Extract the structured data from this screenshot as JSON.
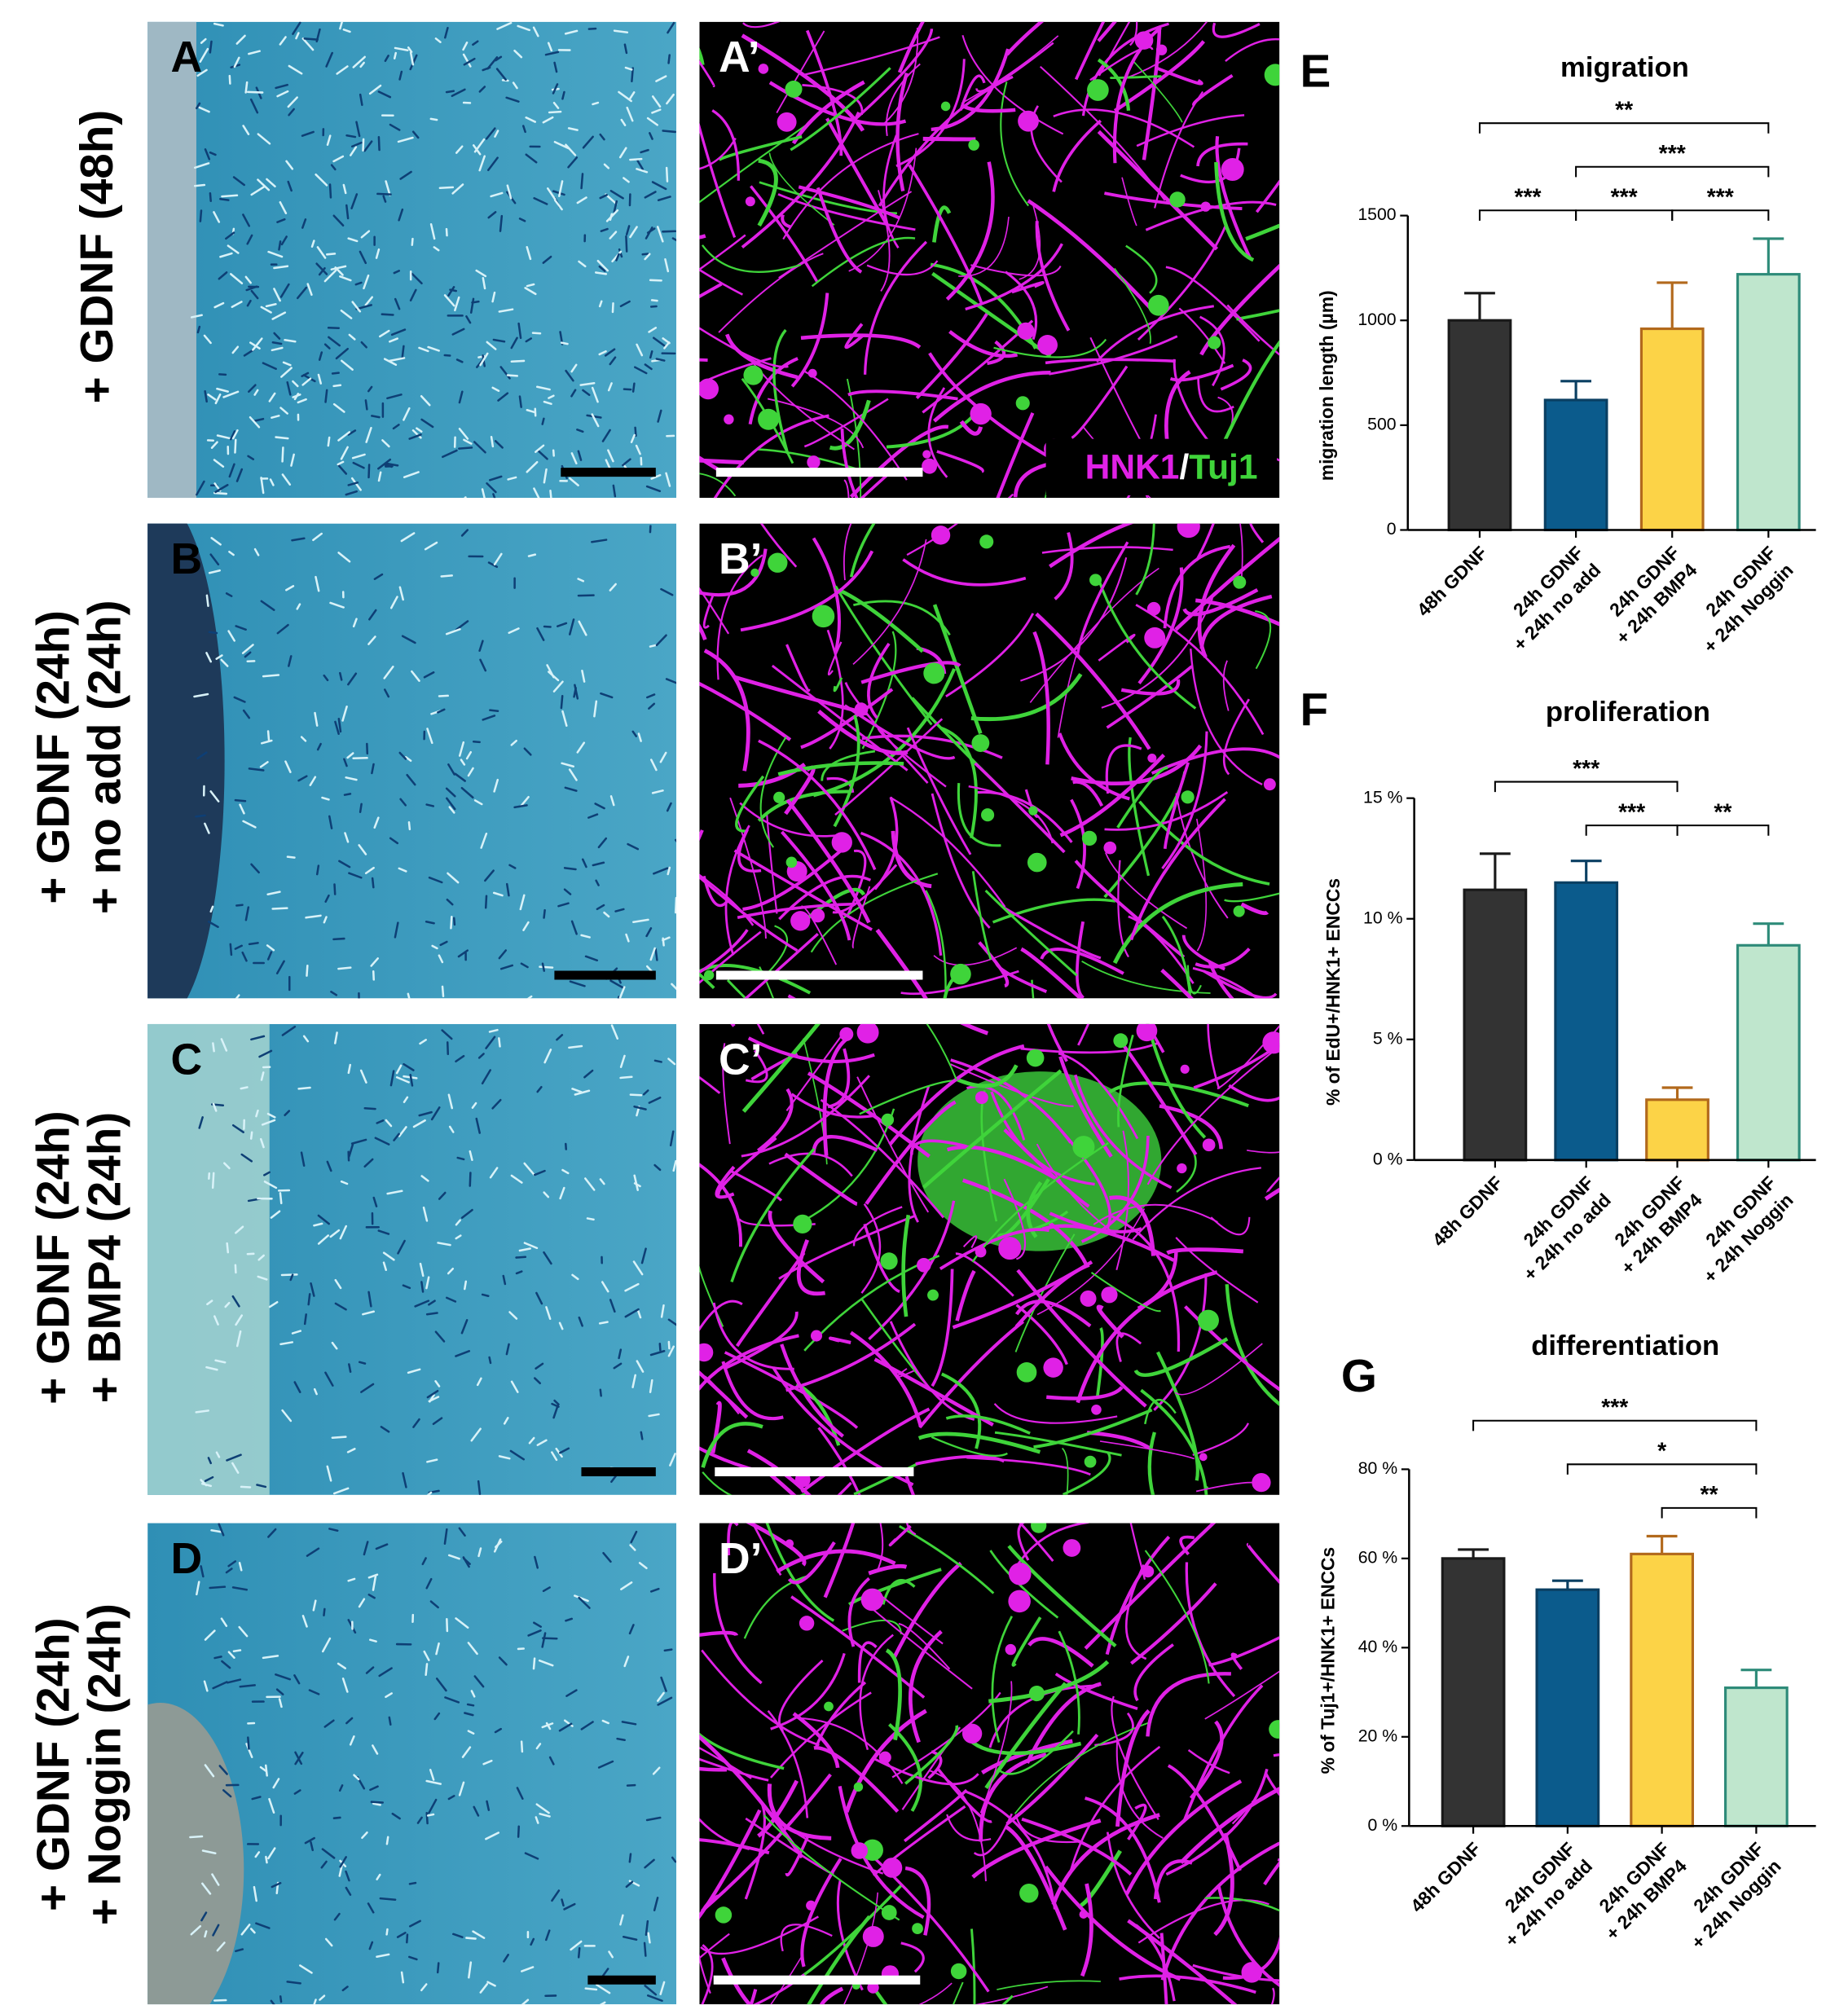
{
  "panels": {
    "left": [
      "A",
      "B",
      "C",
      "D"
    ],
    "right": [
      "A’",
      "B’",
      "C’",
      "D’"
    ]
  },
  "row_labels": [
    [
      "+ GDNF (48h)"
    ],
    [
      "+ GDNF (24h)",
      "+ no add (24h)"
    ],
    [
      "+ GDNF (24h)",
      "+ BMP4 (24h)"
    ],
    [
      "+ GDNF (24h)",
      "+ Noggin (24h)"
    ]
  ],
  "stain_label": {
    "hnk1": "HNK1",
    "separator": "/",
    "tuj1": "Tuj1"
  },
  "chart_data": [
    {
      "type": "bar",
      "panel": "E",
      "title": "migration",
      "y_label": "migration length (µm)",
      "categories": [
        [
          "48h GDNF"
        ],
        [
          "24h GDNF",
          "+ 24h no add"
        ],
        [
          "24h GDNF",
          "+ 24h BMP4"
        ],
        [
          "24h GDNF",
          "+ 24h Noggin"
        ]
      ],
      "values": [
        1000,
        620,
        960,
        1220
      ],
      "errors": [
        130,
        90,
        220,
        170
      ],
      "colors": [
        "#333333",
        "#0b5b8c",
        "#fcd347",
        "#bfe6cd"
      ],
      "edge_colors": [
        "#1a1a1a",
        "#0a3f62",
        "#b2691c",
        "#2e8b79"
      ],
      "ylim": [
        0,
        1500
      ],
      "yticks": [
        0,
        500,
        1000,
        1500
      ],
      "comparisons": [
        {
          "groups": [
            0,
            3
          ],
          "label": "**"
        },
        {
          "groups": [
            1,
            3
          ],
          "label": "***"
        },
        {
          "groups": [
            0,
            1
          ],
          "label": "***"
        },
        {
          "groups": [
            1,
            2
          ],
          "label": "***"
        },
        {
          "groups": [
            2,
            3
          ],
          "label": "***"
        }
      ]
    },
    {
      "type": "bar",
      "panel": "F",
      "title": "proliferation",
      "y_label": "% of EdU+/HNK1+ ENCCs",
      "categories": [
        [
          "48h GDNF"
        ],
        [
          "24h GDNF",
          "+ 24h no add"
        ],
        [
          "24h GDNF",
          "+ 24h BMP4"
        ],
        [
          "24h GDNF",
          "+ 24h Noggin"
        ]
      ],
      "values": [
        11.2,
        11.5,
        2.5,
        8.9
      ],
      "errors": [
        1.5,
        0.9,
        0.5,
        0.9
      ],
      "colors": [
        "#333333",
        "#0b5b8c",
        "#fcd347",
        "#bfe6cd"
      ],
      "edge_colors": [
        "#1a1a1a",
        "#0a3f62",
        "#b2691c",
        "#2e8b79"
      ],
      "ylim": [
        0,
        15
      ],
      "yticks": [
        {
          "value": 0,
          "label": "0 %"
        },
        {
          "value": 5,
          "label": "5 %"
        },
        {
          "value": 10,
          "label": "10 %"
        },
        {
          "value": 15,
          "label": "15 %"
        }
      ],
      "comparisons": [
        {
          "groups": [
            0,
            2
          ],
          "label": "***"
        },
        {
          "groups": [
            1,
            2
          ],
          "label": "***"
        },
        {
          "groups": [
            2,
            3
          ],
          "label": "**"
        }
      ]
    },
    {
      "type": "bar",
      "panel": "G",
      "title": "differentiation",
      "y_label": "% of Tuj1+/HNK1+ ENCCs",
      "categories": [
        [
          "48h GDNF"
        ],
        [
          "24h GDNF",
          "+ 24h no add"
        ],
        [
          "24h GDNF",
          "+ 24h BMP4"
        ],
        [
          "24h GDNF",
          "+ 24h Noggin"
        ]
      ],
      "values": [
        60,
        53,
        61,
        31
      ],
      "errors": [
        2,
        2,
        4,
        4
      ],
      "colors": [
        "#333333",
        "#0b5b8c",
        "#fcd347",
        "#bfe6cd"
      ],
      "edge_colors": [
        "#1a1a1a",
        "#0a3f62",
        "#b2691c",
        "#2e8b79"
      ],
      "ylim": [
        0,
        80
      ],
      "yticks": [
        {
          "value": 0,
          "label": "0 %"
        },
        {
          "value": 20,
          "label": "20 %"
        },
        {
          "value": 40,
          "label": "40 %"
        },
        {
          "value": 60,
          "label": "60 %"
        },
        {
          "value": 80,
          "label": "80 %"
        }
      ],
      "comparisons": [
        {
          "groups": [
            0,
            3
          ],
          "label": "***"
        },
        {
          "groups": [
            1,
            3
          ],
          "label": "*"
        },
        {
          "groups": [
            2,
            3
          ],
          "label": "**"
        }
      ]
    }
  ]
}
